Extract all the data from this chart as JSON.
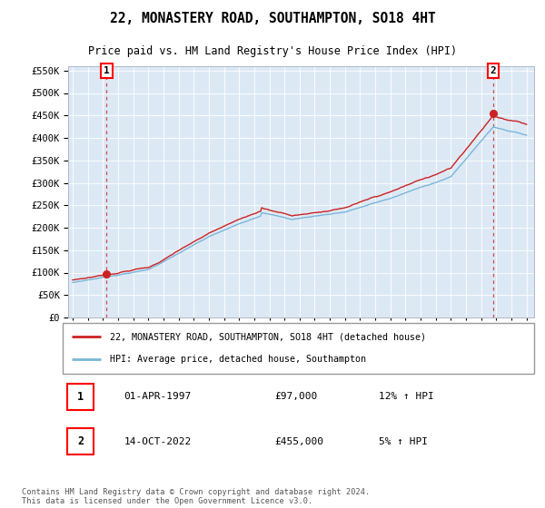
{
  "title": "22, MONASTERY ROAD, SOUTHAMPTON, SO18 4HT",
  "subtitle": "Price paid vs. HM Land Registry's House Price Index (HPI)",
  "legend_line1": "22, MONASTERY ROAD, SOUTHAMPTON, SO18 4HT (detached house)",
  "legend_line2": "HPI: Average price, detached house, Southampton",
  "sale1_label": "1",
  "sale2_label": "2",
  "sale1_date": "01-APR-1997",
  "sale1_price": "£97,000",
  "sale1_hpi": "12% ↑ HPI",
  "sale2_date": "14-OCT-2022",
  "sale2_price": "£455,000",
  "sale2_hpi": "5% ↑ HPI",
  "footer": "Contains HM Land Registry data © Crown copyright and database right 2024.\nThis data is licensed under the Open Government Licence v3.0.",
  "hpi_color": "#7ab5d8",
  "price_color": "#cc2222",
  "dashed_line_color": "#cc2222",
  "plot_bg_color": "#dce9f5",
  "grid_color": "#ffffff",
  "ylim": [
    0,
    560000
  ],
  "xlim_start": 1994.7,
  "xlim_end": 2025.5,
  "sale1_year": 1997.25,
  "sale1_value": 97000,
  "sale2_year": 2022.79,
  "sale2_value": 455000
}
